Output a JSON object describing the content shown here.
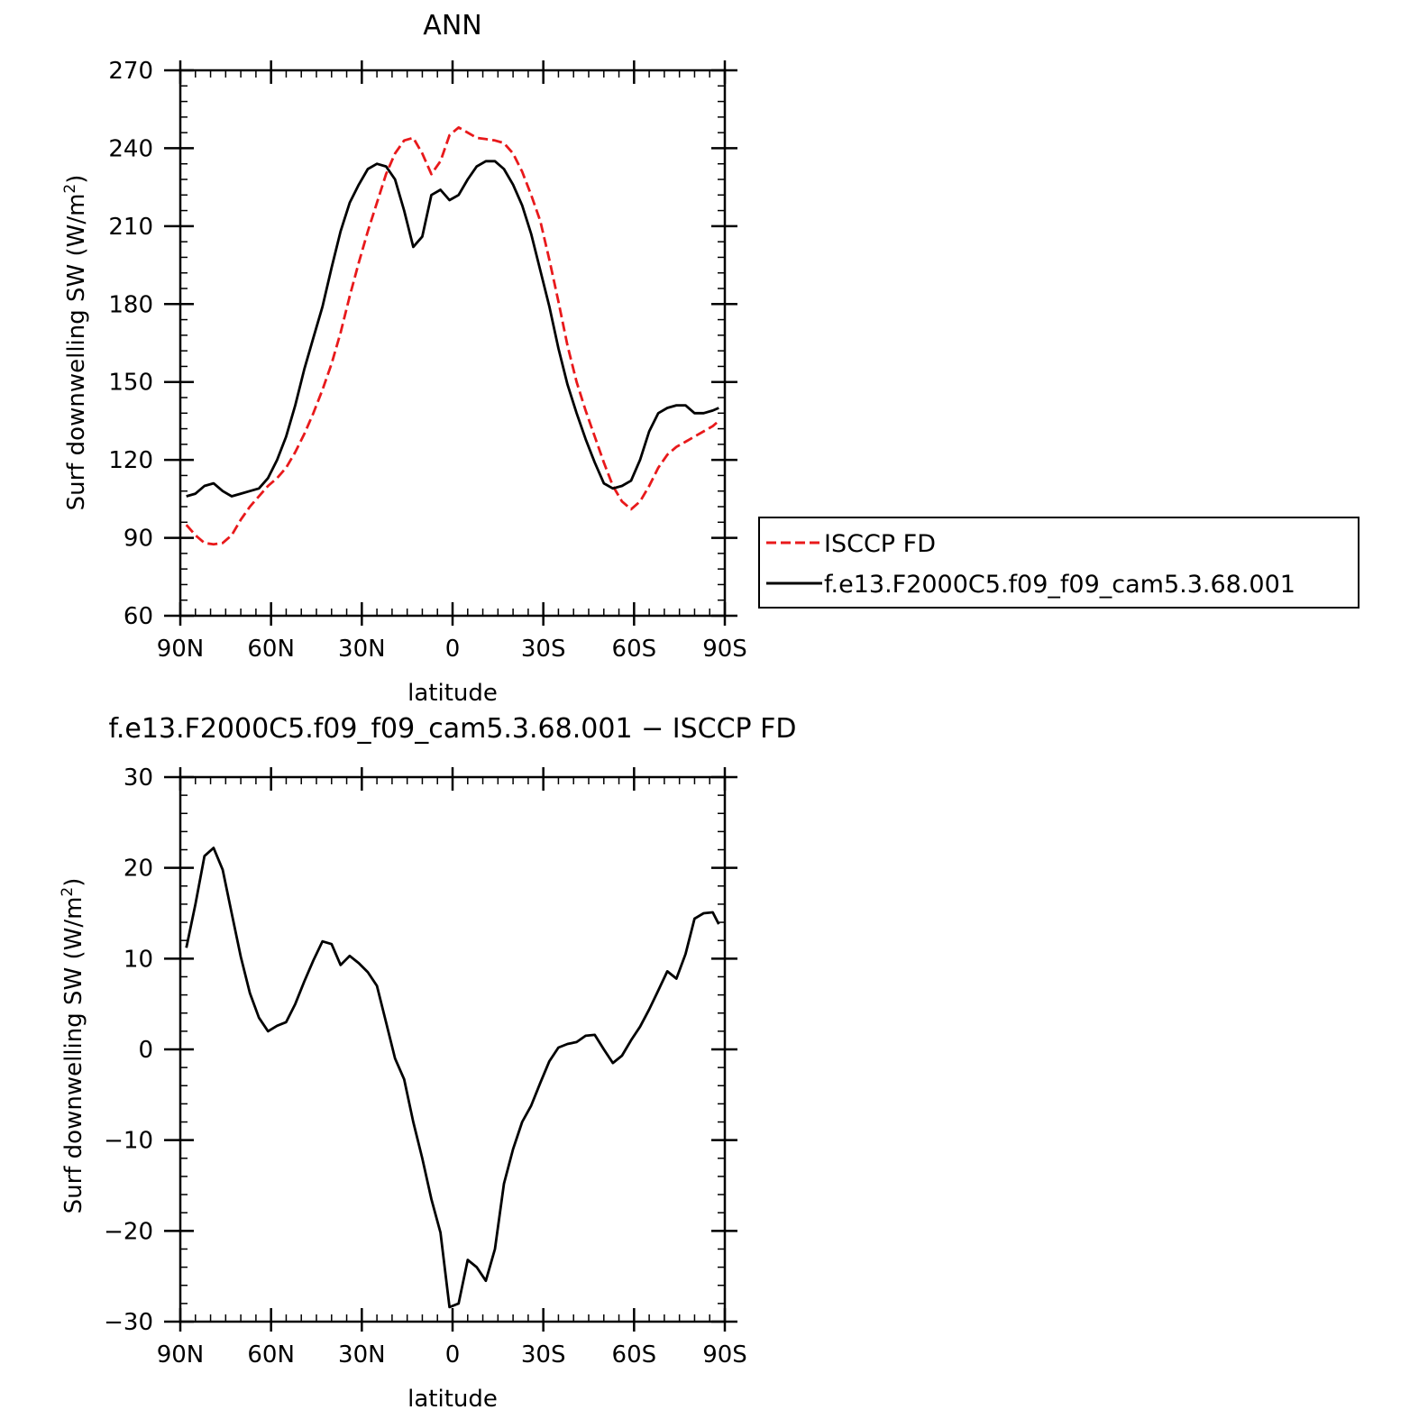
{
  "chart_data": [
    {
      "type": "line",
      "title": "ANN",
      "xlabel": "latitude",
      "ylabel": "Surf downwelling SW (W/m²)",
      "ylabel_main": "Surf downwelling SW (W/m",
      "ylabel_sup": "2",
      "ylabel_close": ")",
      "xlim": [
        90,
        -90
      ],
      "ylim": [
        60,
        270
      ],
      "xticks": [
        90,
        60,
        30,
        0,
        -30,
        -60,
        -90
      ],
      "xtick_labels": [
        "90N",
        "60N",
        "30N",
        "0",
        "30S",
        "60S",
        "90S"
      ],
      "yticks": [
        60,
        90,
        120,
        150,
        180,
        210,
        240,
        270
      ],
      "ytick_labels": [
        "60",
        "90",
        "120",
        "150",
        "180",
        "210",
        "240",
        "270"
      ],
      "legend": "right",
      "grid": false,
      "series": [
        {
          "name": "ISCCP FD",
          "color": "#e8191b",
          "dash": "dashed",
          "x": [
            88,
            85,
            82,
            79,
            76,
            73,
            70,
            67,
            64,
            61,
            58,
            55,
            52,
            49,
            46,
            43,
            40,
            37,
            34,
            31,
            28,
            25,
            22,
            19,
            16,
            13,
            10,
            7,
            4,
            1,
            -2,
            -5,
            -8,
            -11,
            -14,
            -17,
            -20,
            -23,
            -26,
            -29,
            -32,
            -35,
            -38,
            -41,
            -44,
            -47,
            -50,
            -53,
            -56,
            -59,
            -62,
            -65,
            -68,
            -71,
            -74,
            -77,
            -80,
            -83,
            -86,
            -88
          ],
          "y": [
            95,
            91,
            88,
            87.5,
            88,
            91,
            97,
            102,
            106,
            110,
            113,
            117,
            123,
            130,
            138,
            147,
            157,
            169,
            183,
            196,
            208,
            219,
            230,
            238,
            243,
            244,
            238,
            230,
            235,
            245,
            248,
            246,
            244,
            243.5,
            243,
            242,
            238,
            231,
            222,
            212,
            197,
            181,
            164,
            150,
            139,
            129,
            119,
            110,
            104,
            101,
            104,
            110,
            117,
            122,
            125,
            127,
            129,
            131,
            133,
            135
          ]
        },
        {
          "name": "f.e13.F2000C5.f09_f09_cam5.3.68.001",
          "color": "#000000",
          "dash": "solid",
          "x": [
            88,
            85,
            82,
            79,
            76,
            73,
            70,
            67,
            64,
            61,
            58,
            55,
            52,
            49,
            46,
            43,
            40,
            37,
            34,
            31,
            28,
            25,
            22,
            19,
            16,
            13,
            10,
            7,
            4,
            1,
            -2,
            -5,
            -8,
            -11,
            -14,
            -17,
            -20,
            -23,
            -26,
            -29,
            -32,
            -35,
            -38,
            -41,
            -44,
            -47,
            -50,
            -53,
            -56,
            -59,
            -62,
            -65,
            -68,
            -71,
            -74,
            -77,
            -80,
            -83,
            -86,
            -88
          ],
          "y": [
            106,
            107,
            110,
            111,
            108,
            106,
            107,
            108,
            109,
            113,
            120,
            129,
            141,
            155,
            167,
            179,
            194,
            208,
            219,
            226,
            232,
            234,
            233,
            228,
            216,
            202,
            206,
            222,
            224,
            220,
            222,
            228,
            233,
            235,
            235,
            232,
            226,
            218,
            207,
            193,
            179,
            163,
            149,
            138,
            128,
            119,
            111,
            109,
            110,
            112,
            120,
            131,
            138,
            140,
            141,
            141,
            138,
            138,
            139,
            140
          ]
        }
      ]
    },
    {
      "type": "line",
      "title": "f.e13.F2000C5.f09_f09_cam5.3.68.001 − ISCCP FD",
      "xlabel": "latitude",
      "ylabel": "Surf downwelling SW (W/m²)",
      "ylabel_main": "Surf downwelling SW (W/m",
      "ylabel_sup": "2",
      "ylabel_close": ")",
      "xlim": [
        90,
        -90
      ],
      "ylim": [
        -30,
        30
      ],
      "xticks": [
        90,
        60,
        30,
        0,
        -30,
        -60,
        -90
      ],
      "xtick_labels": [
        "90N",
        "60N",
        "30N",
        "0",
        "30S",
        "60S",
        "90S"
      ],
      "yticks": [
        -30,
        -20,
        -10,
        0,
        10,
        20,
        30
      ],
      "ytick_labels": [
        "−30",
        "−20",
        "−10",
        "0",
        "10",
        "20",
        "30"
      ],
      "grid": false,
      "series": [
        {
          "color": "#000000",
          "dash": "solid",
          "x": [
            88,
            85,
            82,
            79,
            76,
            73,
            70,
            67,
            64,
            61,
            58,
            55,
            52,
            49,
            46,
            43,
            40,
            37,
            34,
            31,
            28,
            25,
            22,
            19,
            16,
            13,
            10,
            7,
            4,
            1,
            -2,
            -5,
            -8,
            -11,
            -14,
            -17,
            -20,
            -23,
            -26,
            -29,
            -32,
            -35,
            -38,
            -41,
            -44,
            -47,
            -50,
            -53,
            -56,
            -59,
            -62,
            -65,
            -68,
            -71,
            -74,
            -77,
            -80,
            -83,
            -86,
            -88
          ],
          "y": [
            11.2,
            16,
            21.3,
            22.2,
            19.8,
            15,
            10.2,
            6.2,
            3.5,
            2,
            2.6,
            3,
            5,
            7.5,
            9.8,
            11.9,
            11.6,
            9.3,
            10.3,
            9.5,
            8.5,
            7,
            3,
            -1,
            -3.3,
            -8,
            -12,
            -16.5,
            -20.2,
            -28.4,
            -28,
            -23.2,
            -24,
            -25.5,
            -22,
            -14.8,
            -11,
            -8,
            -6.2,
            -3.7,
            -1.3,
            0.2,
            0.6,
            0.8,
            1.5,
            1.6,
            0,
            -1.5,
            -0.7,
            1,
            2.5,
            4.4,
            6.5,
            8.6,
            7.8,
            10.5,
            14.4,
            15,
            15.1,
            13.8
          ]
        }
      ]
    }
  ]
}
